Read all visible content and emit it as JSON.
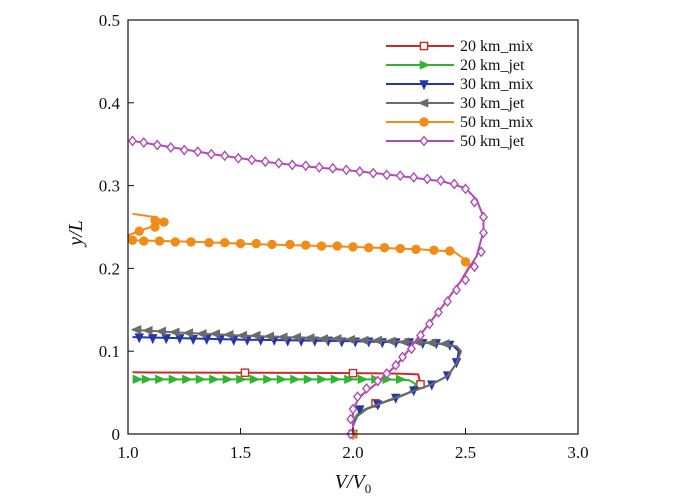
{
  "chart_data": {
    "type": "line",
    "xlabel": "V/V0",
    "xlabel_main": "V/V",
    "xlabel_sub": "0",
    "ylabel": "y/L",
    "ylabel_main": "y/",
    "ylabel_italic": "L",
    "xlim": [
      1.0,
      3.0
    ],
    "ylim": [
      0,
      0.5
    ],
    "xticks": [
      "1.0",
      "1.5",
      "2.0",
      "2.5",
      "3.0"
    ],
    "yticks": [
      "0",
      "0.1",
      "0.2",
      "0.3",
      "0.4",
      "0.5"
    ],
    "legend_position": "top-right",
    "grid": false,
    "series": [
      {
        "name": "20 km_mix",
        "color": "#cc2a2a",
        "marker": "square",
        "points": [
          [
            2.0,
            0.0
          ],
          [
            2.0,
            0.01
          ],
          [
            2.01,
            0.02
          ],
          [
            2.03,
            0.027
          ],
          [
            2.1,
            0.035
          ],
          [
            2.18,
            0.042
          ],
          [
            2.25,
            0.05
          ],
          [
            2.3,
            0.06
          ],
          [
            2.29,
            0.072
          ],
          [
            2.2,
            0.073
          ],
          [
            2.0,
            0.0735
          ],
          [
            1.8,
            0.0738
          ],
          [
            1.52,
            0.074
          ],
          [
            1.3,
            0.0742
          ],
          [
            1.1,
            0.0743
          ],
          [
            1.02,
            0.0745
          ]
        ],
        "marker_points": [
          [
            2.0,
            0.0
          ],
          [
            2.1,
            0.037
          ],
          [
            2.3,
            0.06
          ],
          [
            2.0,
            0.0735
          ],
          [
            1.52,
            0.074
          ]
        ]
      },
      {
        "name": "20 km_jet",
        "color": "#2fb52f",
        "marker": "triangle-right",
        "points": [
          [
            2.0,
            0.0
          ],
          [
            2.0,
            0.01
          ],
          [
            2.01,
            0.02
          ],
          [
            2.03,
            0.027
          ],
          [
            2.1,
            0.035
          ],
          [
            2.18,
            0.042
          ],
          [
            2.25,
            0.05
          ],
          [
            2.28,
            0.06
          ],
          [
            2.25,
            0.065
          ],
          [
            2.15,
            0.066
          ],
          [
            2.0,
            0.066
          ],
          [
            1.8,
            0.066
          ],
          [
            1.5,
            0.066
          ],
          [
            1.2,
            0.066
          ],
          [
            1.02,
            0.066
          ]
        ],
        "marker_points": [
          [
            2.21,
            0.066
          ],
          [
            2.15,
            0.066
          ],
          [
            2.1,
            0.066
          ],
          [
            2.04,
            0.066
          ],
          [
            1.98,
            0.066
          ],
          [
            1.92,
            0.066
          ],
          [
            1.86,
            0.066
          ],
          [
            1.8,
            0.066
          ],
          [
            1.74,
            0.066
          ],
          [
            1.68,
            0.066
          ],
          [
            1.62,
            0.066
          ],
          [
            1.56,
            0.066
          ],
          [
            1.5,
            0.066
          ],
          [
            1.44,
            0.066
          ],
          [
            1.38,
            0.066
          ],
          [
            1.32,
            0.066
          ],
          [
            1.26,
            0.066
          ],
          [
            1.2,
            0.066
          ],
          [
            1.14,
            0.066
          ],
          [
            1.08,
            0.066
          ],
          [
            1.04,
            0.066
          ]
        ]
      },
      {
        "name": "30 km_mix",
        "color": "#2436a8",
        "marker": "triangle-down",
        "points": [
          [
            2.0,
            0.0
          ],
          [
            2.0,
            0.01
          ],
          [
            2.02,
            0.022
          ],
          [
            2.06,
            0.03
          ],
          [
            2.15,
            0.04
          ],
          [
            2.25,
            0.05
          ],
          [
            2.35,
            0.06
          ],
          [
            2.42,
            0.07
          ],
          [
            2.46,
            0.085
          ],
          [
            2.47,
            0.1
          ],
          [
            2.44,
            0.108
          ],
          [
            2.35,
            0.11
          ],
          [
            2.0,
            0.112
          ],
          [
            1.5,
            0.114
          ],
          [
            1.2,
            0.116
          ],
          [
            1.02,
            0.117
          ]
        ],
        "marker_points": [
          [
            2.0,
            0.0
          ],
          [
            2.03,
            0.03
          ],
          [
            2.11,
            0.036
          ],
          [
            2.19,
            0.044
          ],
          [
            2.27,
            0.053
          ],
          [
            2.35,
            0.06
          ],
          [
            2.42,
            0.071
          ],
          [
            2.46,
            0.087
          ],
          [
            2.43,
            0.108
          ],
          [
            2.37,
            0.11
          ],
          [
            2.31,
            0.11
          ],
          [
            2.25,
            0.111
          ],
          [
            2.19,
            0.111
          ],
          [
            2.13,
            0.111
          ],
          [
            2.07,
            0.112
          ],
          [
            2.01,
            0.112
          ],
          [
            1.95,
            0.112
          ],
          [
            1.89,
            0.113
          ],
          [
            1.83,
            0.113
          ],
          [
            1.77,
            0.113
          ],
          [
            1.71,
            0.113
          ],
          [
            1.65,
            0.114
          ],
          [
            1.59,
            0.114
          ],
          [
            1.53,
            0.114
          ],
          [
            1.47,
            0.114
          ],
          [
            1.41,
            0.115
          ],
          [
            1.35,
            0.115
          ],
          [
            1.29,
            0.115
          ],
          [
            1.23,
            0.116
          ],
          [
            1.17,
            0.116
          ],
          [
            1.11,
            0.116
          ],
          [
            1.05,
            0.117
          ]
        ]
      },
      {
        "name": "30 km_jet",
        "color": "#6b6b6b",
        "marker": "triangle-left",
        "points": [
          [
            2.0,
            0.0
          ],
          [
            2.0,
            0.01
          ],
          [
            2.02,
            0.022
          ],
          [
            2.06,
            0.03
          ],
          [
            2.15,
            0.04
          ],
          [
            2.25,
            0.05
          ],
          [
            2.35,
            0.06
          ],
          [
            2.42,
            0.07
          ],
          [
            2.46,
            0.085
          ],
          [
            2.48,
            0.1
          ],
          [
            2.46,
            0.106
          ],
          [
            2.35,
            0.11
          ],
          [
            2.0,
            0.114
          ],
          [
            1.5,
            0.119
          ],
          [
            1.2,
            0.123
          ],
          [
            1.02,
            0.126
          ]
        ],
        "marker_points": [
          [
            2.41,
            0.109
          ],
          [
            2.35,
            0.11
          ],
          [
            2.29,
            0.111
          ],
          [
            2.23,
            0.111
          ],
          [
            2.17,
            0.112
          ],
          [
            2.11,
            0.113
          ],
          [
            2.05,
            0.113
          ],
          [
            1.99,
            0.114
          ],
          [
            1.93,
            0.115
          ],
          [
            1.87,
            0.115
          ],
          [
            1.81,
            0.116
          ],
          [
            1.75,
            0.117
          ],
          [
            1.69,
            0.117
          ],
          [
            1.63,
            0.118
          ],
          [
            1.57,
            0.119
          ],
          [
            1.51,
            0.119
          ],
          [
            1.45,
            0.12
          ],
          [
            1.39,
            0.121
          ],
          [
            1.33,
            0.121
          ],
          [
            1.27,
            0.122
          ],
          [
            1.21,
            0.123
          ],
          [
            1.15,
            0.124
          ],
          [
            1.09,
            0.125
          ],
          [
            1.04,
            0.126
          ]
        ]
      },
      {
        "name": "50 km_mix",
        "color": "#f08c1a",
        "marker": "circle",
        "points": [
          [
            2.0,
            0.0
          ],
          [
            2.0,
            0.03
          ],
          [
            2.03,
            0.045
          ],
          [
            2.1,
            0.06
          ],
          [
            2.2,
            0.085
          ],
          [
            2.3,
            0.12
          ],
          [
            2.4,
            0.155
          ],
          [
            2.48,
            0.185
          ],
          [
            2.52,
            0.205
          ],
          [
            2.5,
            0.21
          ],
          [
            2.45,
            0.22
          ],
          [
            2.3,
            0.223
          ],
          [
            2.0,
            0.226
          ],
          [
            1.6,
            0.229
          ],
          [
            1.3,
            0.232
          ],
          [
            1.02,
            0.234
          ],
          [
            1.0,
            0.24
          ],
          [
            1.1,
            0.25
          ],
          [
            1.16,
            0.256
          ],
          [
            1.12,
            0.262
          ],
          [
            1.02,
            0.266
          ]
        ],
        "marker_points": [
          [
            2.0,
            0.0
          ],
          [
            2.5,
            0.208
          ],
          [
            2.43,
            0.221
          ],
          [
            2.36,
            0.222
          ],
          [
            2.28,
            0.223
          ],
          [
            2.21,
            0.224
          ],
          [
            2.14,
            0.225
          ],
          [
            2.07,
            0.225
          ],
          [
            2.0,
            0.226
          ],
          [
            1.93,
            0.227
          ],
          [
            1.86,
            0.227
          ],
          [
            1.79,
            0.228
          ],
          [
            1.72,
            0.229
          ],
          [
            1.64,
            0.229
          ],
          [
            1.57,
            0.23
          ],
          [
            1.5,
            0.23
          ],
          [
            1.43,
            0.231
          ],
          [
            1.36,
            0.231
          ],
          [
            1.28,
            0.232
          ],
          [
            1.21,
            0.232
          ],
          [
            1.14,
            0.233
          ],
          [
            1.07,
            0.233
          ],
          [
            1.02,
            0.234
          ],
          [
            1.05,
            0.245
          ],
          [
            1.12,
            0.25
          ],
          [
            1.16,
            0.256
          ],
          [
            1.12,
            0.258
          ]
        ]
      },
      {
        "name": "50 km_jet",
        "color": "#b04cb8",
        "marker": "diamond",
        "points": [
          [
            2.0,
            0.0
          ],
          [
            2.0,
            0.03
          ],
          [
            2.03,
            0.045
          ],
          [
            2.1,
            0.06
          ],
          [
            2.2,
            0.085
          ],
          [
            2.3,
            0.12
          ],
          [
            2.4,
            0.155
          ],
          [
            2.48,
            0.185
          ],
          [
            2.55,
            0.215
          ],
          [
            2.58,
            0.245
          ],
          [
            2.58,
            0.262
          ],
          [
            2.55,
            0.283
          ],
          [
            2.5,
            0.297
          ],
          [
            2.4,
            0.305
          ],
          [
            2.2,
            0.312
          ],
          [
            2.0,
            0.318
          ],
          [
            1.8,
            0.323
          ],
          [
            1.6,
            0.329
          ],
          [
            1.4,
            0.337
          ],
          [
            1.2,
            0.346
          ],
          [
            1.02,
            0.354
          ]
        ],
        "marker_points": [
          [
            1.99,
            0.0
          ],
          [
            1.99,
            0.018
          ],
          [
            2.0,
            0.03
          ],
          [
            2.02,
            0.045
          ],
          [
            2.06,
            0.055
          ],
          [
            2.11,
            0.064
          ],
          [
            2.15,
            0.073
          ],
          [
            2.19,
            0.083
          ],
          [
            2.22,
            0.093
          ],
          [
            2.26,
            0.103
          ],
          [
            2.3,
            0.119
          ],
          [
            2.34,
            0.133
          ],
          [
            2.38,
            0.147
          ],
          [
            2.42,
            0.16
          ],
          [
            2.46,
            0.174
          ],
          [
            2.5,
            0.186
          ],
          [
            2.54,
            0.202
          ],
          [
            2.57,
            0.22
          ],
          [
            2.58,
            0.243
          ],
          [
            2.58,
            0.262
          ],
          [
            2.54,
            0.28
          ],
          [
            2.5,
            0.296
          ],
          [
            2.45,
            0.302
          ],
          [
            2.39,
            0.306
          ],
          [
            2.33,
            0.308
          ],
          [
            2.27,
            0.31
          ],
          [
            2.21,
            0.312
          ],
          [
            2.15,
            0.313
          ],
          [
            2.09,
            0.315
          ],
          [
            2.03,
            0.317
          ],
          [
            1.97,
            0.319
          ],
          [
            1.91,
            0.321
          ],
          [
            1.85,
            0.322
          ],
          [
            1.79,
            0.324
          ],
          [
            1.73,
            0.325
          ],
          [
            1.67,
            0.327
          ],
          [
            1.61,
            0.329
          ],
          [
            1.55,
            0.331
          ],
          [
            1.49,
            0.333
          ],
          [
            1.43,
            0.336
          ],
          [
            1.37,
            0.338
          ],
          [
            1.31,
            0.341
          ],
          [
            1.25,
            0.343
          ],
          [
            1.19,
            0.346
          ],
          [
            1.13,
            0.349
          ],
          [
            1.07,
            0.352
          ],
          [
            1.02,
            0.354
          ]
        ]
      }
    ]
  }
}
